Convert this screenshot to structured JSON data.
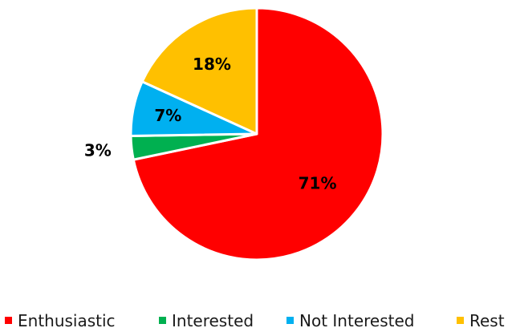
{
  "chart_data": {
    "type": "pie",
    "title": "",
    "categories": [
      "Enthusiastic",
      "Interested",
      "Not Interested",
      "Rest"
    ],
    "values": [
      71,
      3,
      7,
      18
    ],
    "labels": [
      "71%",
      "3%",
      "7%",
      "18%"
    ],
    "colors": [
      "#ff0000",
      "#00b050",
      "#00b0f0",
      "#ffc000"
    ],
    "start_angle_deg": 0,
    "direction": "clockwise",
    "legend": {
      "placement": "bottom",
      "entries": [
        "Enthusiastic",
        "Interested",
        "Not Interested",
        "Rest"
      ]
    }
  }
}
